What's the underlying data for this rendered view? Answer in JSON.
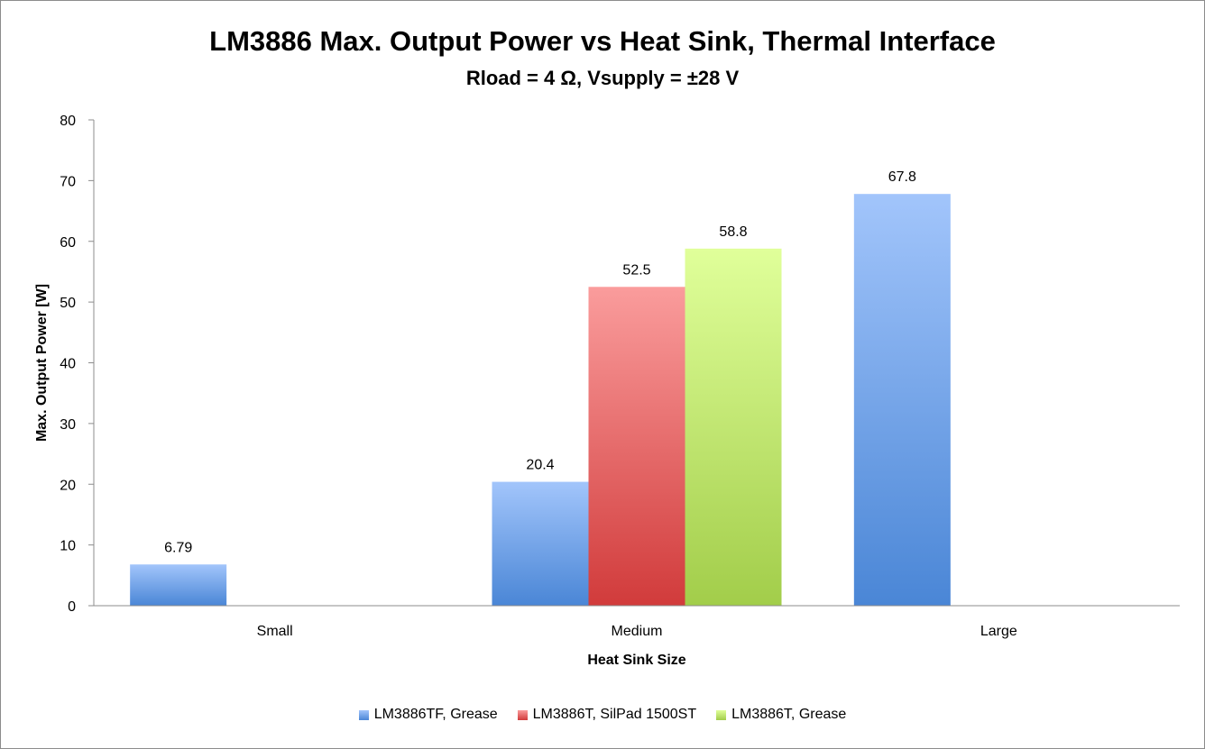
{
  "chart_data": {
    "type": "bar",
    "title": "LM3886 Max. Output Power vs Heat Sink, Thermal Interface",
    "subtitle": "Rload = 4 Ω, Vsupply = ±28 V",
    "xlabel": "Heat Sink Size",
    "ylabel": "Max. Output Power [W]",
    "ylim": [
      0,
      80
    ],
    "yticks": [
      0,
      10,
      20,
      30,
      40,
      50,
      60,
      70,
      80
    ],
    "categories": [
      "Small",
      "Medium",
      "Large"
    ],
    "series": [
      {
        "name": "LM3886TF, Grease",
        "color": "#4a86d6",
        "color_light": "#a2c5fb",
        "values": [
          6.79,
          20.4,
          67.8
        ],
        "labels": [
          "6.79",
          "20.4",
          "67.8"
        ]
      },
      {
        "name": "LM3886T, SilPad 1500ST",
        "color": "#d13b3b",
        "color_light": "#fa9c9c",
        "values": [
          null,
          52.5,
          null
        ],
        "labels": [
          "",
          "52.5",
          ""
        ]
      },
      {
        "name": "LM3886T, Grease",
        "color": "#a2cd4a",
        "color_light": "#e0ff9a",
        "values": [
          null,
          58.8,
          null
        ],
        "labels": [
          "",
          "58.8",
          ""
        ]
      }
    ],
    "grid": false,
    "legend_position": "bottom"
  }
}
